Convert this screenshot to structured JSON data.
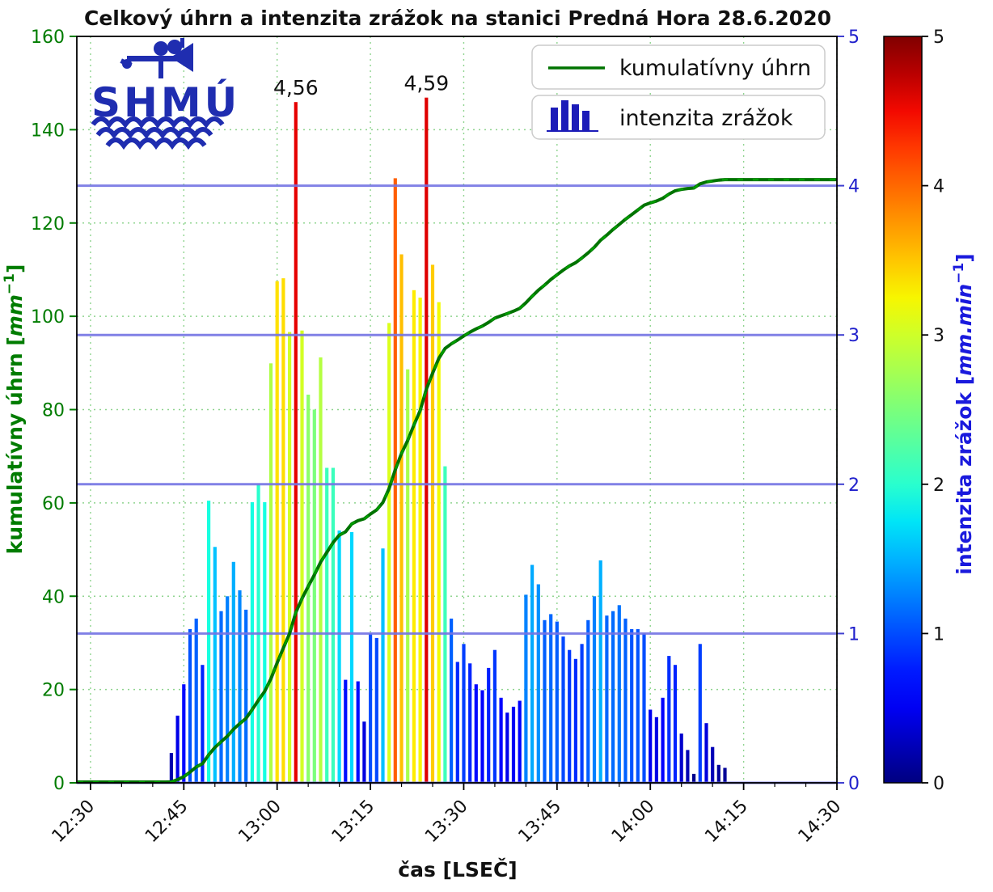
{
  "logo": {
    "text": "SHMÚ",
    "color": "#1f2db0"
  },
  "chart_data": {
    "type": "bar+line",
    "title": "Celkový úhrn a intenzita zrážok na stanici Predná Hora 28.6.2020",
    "xlabel": "čas [LSEČ]",
    "x_ticks": [
      "12:30",
      "12:45",
      "13:00",
      "13:15",
      "13:30",
      "13:45",
      "14:00",
      "14:15",
      "14:30"
    ],
    "x_minor_tick_minutes": 5,
    "y_left": {
      "label": "kumulatívny úhrn",
      "unit": "mm⁻¹",
      "unit_base": "mm",
      "unit_exp": "−1",
      "color": "#007c00",
      "min": 0,
      "max": 160,
      "ticks": [
        0,
        20,
        40,
        60,
        80,
        100,
        120,
        140,
        160
      ]
    },
    "y_right": {
      "label": "intenzita zrážok",
      "unit": "mm.min⁻¹",
      "unit_base": "mm.min",
      "unit_exp": "−1",
      "color": "#1a1add",
      "min": 0,
      "max": 5,
      "ticks": [
        0,
        1,
        2,
        3,
        4,
        5
      ]
    },
    "colorbar": {
      "ticks": [
        0,
        1,
        2,
        3,
        4,
        5
      ],
      "colormap": "jet",
      "clim": [
        0,
        5
      ]
    },
    "reference_lines": {
      "values": [
        0,
        1,
        2,
        3,
        4
      ],
      "color": "#7474e4"
    },
    "grid": {
      "color": "#8fd48f",
      "style": "dotted"
    },
    "legend": {
      "line_label": "kumulatívny úhrn",
      "bars_label": "intenzita zrážok"
    },
    "annotations": [
      {
        "text": "4,56",
        "time": "13:03",
        "value": 4.56
      },
      {
        "text": "4,59",
        "time": "13:24",
        "value": 4.59
      }
    ],
    "series": {
      "intensity_bars": {
        "name": "intenzita zrážok",
        "unit": "mm.min⁻¹",
        "times": [
          "12:43",
          "12:44",
          "12:45",
          "12:46",
          "12:47",
          "12:48",
          "12:49",
          "12:50",
          "12:51",
          "12:52",
          "12:53",
          "12:54",
          "12:55",
          "12:56",
          "12:57",
          "12:58",
          "12:59",
          "13:00",
          "13:01",
          "13:02",
          "13:03",
          "13:04",
          "13:05",
          "13:06",
          "13:07",
          "13:08",
          "13:09",
          "13:10",
          "13:11",
          "13:12",
          "13:13",
          "13:14",
          "13:15",
          "13:16",
          "13:17",
          "13:18",
          "13:19",
          "13:20",
          "13:21",
          "13:22",
          "13:23",
          "13:24",
          "13:25",
          "13:26",
          "13:27",
          "13:28",
          "13:29",
          "13:30",
          "13:31",
          "13:32",
          "13:33",
          "13:34",
          "13:35",
          "13:36",
          "13:37",
          "13:38",
          "13:39",
          "13:40",
          "13:41",
          "13:42",
          "13:43",
          "13:44",
          "13:45",
          "13:46",
          "13:47",
          "13:48",
          "13:49",
          "13:50",
          "13:51",
          "13:52",
          "13:53",
          "13:54",
          "13:55",
          "13:56",
          "13:57",
          "13:58",
          "13:59",
          "14:00",
          "14:01",
          "14:02",
          "14:03",
          "14:04",
          "14:05",
          "14:06",
          "14:07",
          "14:08",
          "14:09",
          "14:10",
          "14:11",
          "14:12"
        ],
        "values": [
          0.2,
          0.45,
          0.66,
          1.03,
          1.1,
          0.79,
          1.89,
          1.58,
          1.15,
          1.25,
          1.48,
          1.29,
          1.16,
          1.88,
          2.0,
          1.88,
          2.81,
          3.36,
          3.38,
          3.02,
          4.56,
          3.03,
          2.6,
          2.5,
          2.85,
          2.11,
          2.11,
          1.69,
          0.69,
          1.68,
          0.68,
          0.41,
          1.0,
          0.97,
          1.57,
          3.08,
          4.05,
          3.54,
          2.77,
          3.3,
          3.25,
          4.59,
          3.47,
          3.22,
          2.12,
          1.1,
          0.81,
          0.93,
          0.8,
          0.66,
          0.62,
          0.77,
          0.89,
          0.57,
          0.47,
          0.51,
          0.55,
          1.26,
          1.46,
          1.33,
          1.09,
          1.13,
          1.08,
          0.98,
          0.89,
          0.83,
          0.93,
          1.09,
          1.25,
          1.49,
          1.12,
          1.15,
          1.19,
          1.1,
          1.03,
          1.03,
          1.0,
          0.49,
          0.44,
          0.57,
          0.85,
          0.79,
          0.33,
          0.22,
          0.06,
          0.93,
          0.4,
          0.24,
          0.12,
          0.1
        ]
      },
      "cumulative_line": {
        "name": "kumulatívny úhrn",
        "unit": "mm",
        "color": "#007300",
        "times_same_as_bars": true,
        "start_time": "12:30",
        "end_time": "14:30",
        "start_value": 0,
        "final_value": 129.3,
        "values": [
          0.2,
          0.7,
          1.3,
          2.3,
          3.4,
          4.1,
          6.0,
          7.6,
          8.8,
          10.0,
          11.5,
          12.7,
          13.8,
          15.7,
          17.7,
          19.6,
          22.3,
          25.7,
          28.9,
          32.0,
          36.5,
          39.5,
          42.1,
          44.6,
          47.3,
          49.4,
          51.5,
          53.1,
          53.8,
          55.5,
          56.2,
          56.6,
          57.6,
          58.5,
          60.1,
          63.1,
          67.1,
          70.6,
          73.4,
          76.7,
          79.8,
          84.4,
          87.8,
          91.0,
          93.1,
          94.1,
          94.9,
          95.8,
          96.6,
          97.3,
          97.9,
          98.7,
          99.6,
          100.1,
          100.6,
          101.1,
          101.7,
          102.9,
          104.3,
          105.6,
          106.7,
          107.9,
          108.9,
          109.9,
          110.8,
          111.5,
          112.5,
          113.6,
          114.8,
          116.3,
          117.4,
          118.6,
          119.7,
          120.8,
          121.8,
          122.8,
          123.8,
          124.3,
          124.7,
          125.3,
          126.2,
          126.9,
          127.2,
          127.4,
          127.5,
          128.4,
          128.8,
          129.0,
          129.2,
          129.3
        ]
      }
    }
  }
}
